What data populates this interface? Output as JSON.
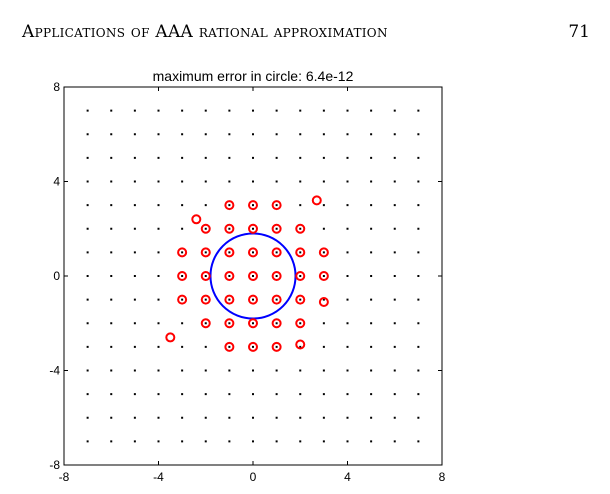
{
  "header": {
    "running_head": "Applications of AAA rational approximation",
    "page_number": "71"
  },
  "chart_data": {
    "type": "scatter",
    "title": "maximum error in circle: 6.4e-12",
    "xlim": [
      -8,
      8
    ],
    "ylim": [
      -8,
      8
    ],
    "x_ticks": [
      "-8",
      "-4",
      "0",
      "4",
      "8"
    ],
    "y_ticks": [
      "8",
      "4",
      "0",
      "-4",
      "-8"
    ],
    "grid_points": {
      "x_range": [
        -7,
        7
      ],
      "y_range": [
        -7,
        7
      ],
      "step": 1,
      "color": "#000000"
    },
    "circle": {
      "center": [
        0,
        0
      ],
      "radius": 1.8,
      "color": "#0000ff"
    },
    "poles": {
      "color": "#ff0000",
      "points": [
        [
          -1,
          3
        ],
        [
          0,
          3
        ],
        [
          1,
          3
        ],
        [
          2.7,
          3.2
        ],
        [
          -2.4,
          2.4
        ],
        [
          -2,
          2
        ],
        [
          -1,
          2
        ],
        [
          0,
          2
        ],
        [
          1,
          2
        ],
        [
          2,
          2
        ],
        [
          -3,
          1
        ],
        [
          -2,
          1
        ],
        [
          -1,
          1
        ],
        [
          0,
          1
        ],
        [
          1,
          1
        ],
        [
          2,
          1
        ],
        [
          3,
          1
        ],
        [
          -3,
          0
        ],
        [
          -2,
          0
        ],
        [
          -1,
          0
        ],
        [
          0,
          0
        ],
        [
          1,
          0
        ],
        [
          2,
          0
        ],
        [
          3,
          0
        ],
        [
          -3,
          -1
        ],
        [
          -2,
          -1
        ],
        [
          -1,
          -1
        ],
        [
          0,
          -1
        ],
        [
          1,
          -1
        ],
        [
          2,
          -1
        ],
        [
          3,
          -1.1
        ],
        [
          -2,
          -2
        ],
        [
          -1,
          -2
        ],
        [
          0,
          -2
        ],
        [
          1,
          -2
        ],
        [
          2,
          -2
        ],
        [
          -3.5,
          -2.6
        ],
        [
          -1,
          -3
        ],
        [
          0,
          -3
        ],
        [
          1,
          -3
        ],
        [
          2,
          -2.9
        ]
      ]
    }
  }
}
